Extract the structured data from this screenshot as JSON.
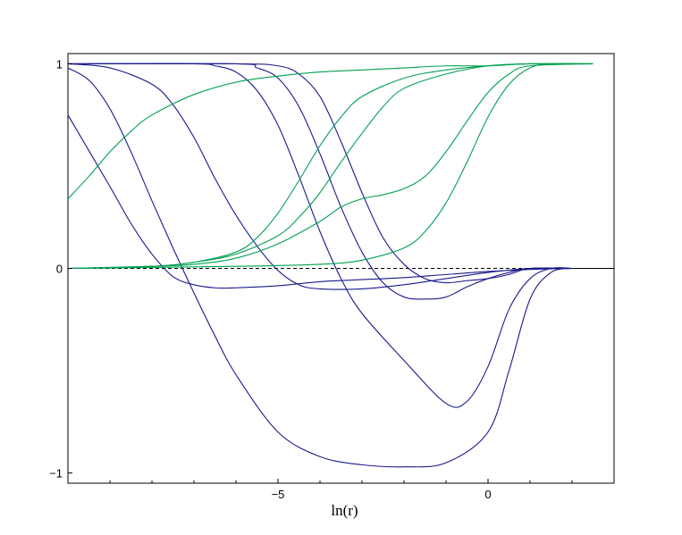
{
  "chart_data": {
    "type": "line",
    "title": "",
    "xlabel": "ln(r)",
    "ylabel": "",
    "xlim": [
      -10,
      3
    ],
    "ylim": [
      -1.05,
      1.05
    ],
    "x_ticks": [
      -5,
      0
    ],
    "x_tick_labels": [
      "−5",
      "0"
    ],
    "y_ticks": [
      -1,
      0,
      1
    ],
    "y_tick_labels": [
      "−1",
      "0",
      "1"
    ],
    "zero_line": {
      "style": "dashed",
      "x_range": [
        -10,
        1
      ]
    },
    "grid": false,
    "legend": "none",
    "colors": {
      "blue": "#1a1a8c",
      "green": "#00a050"
    },
    "series": [
      {
        "color": "blue",
        "points": [
          [
            -10,
            0.75
          ],
          [
            -9,
            0.4
          ],
          [
            -8.5,
            0.22
          ],
          [
            -8,
            0.07
          ],
          [
            -7.5,
            -0.04
          ],
          [
            -7,
            -0.08
          ],
          [
            -6.5,
            -0.095
          ],
          [
            -6,
            -0.095
          ],
          [
            -5,
            -0.085
          ],
          [
            -4,
            -0.065
          ],
          [
            -3,
            -0.055
          ],
          [
            -2,
            -0.045
          ],
          [
            -1,
            -0.03
          ],
          [
            0,
            -0.015
          ],
          [
            1,
            -0.005
          ],
          [
            2,
            0
          ]
        ]
      },
      {
        "color": "blue",
        "points": [
          [
            -10,
            0.98
          ],
          [
            -9.5,
            0.92
          ],
          [
            -9,
            0.78
          ],
          [
            -8.5,
            0.57
          ],
          [
            -8,
            0.33
          ],
          [
            -7.5,
            0.1
          ],
          [
            -7,
            -0.12
          ],
          [
            -6.5,
            -0.33
          ],
          [
            -6,
            -0.52
          ],
          [
            -5,
            -0.8
          ],
          [
            -4,
            -0.92
          ],
          [
            -3,
            -0.96
          ],
          [
            -2,
            -0.97
          ],
          [
            -1,
            -0.95
          ],
          [
            0,
            -0.8
          ],
          [
            0.5,
            -0.5
          ],
          [
            1,
            -0.15
          ],
          [
            1.5,
            -0.02
          ],
          [
            2,
            0
          ]
        ]
      },
      {
        "color": "blue",
        "points": [
          [
            -10,
            1
          ],
          [
            -9,
            0.98
          ],
          [
            -8,
            0.9
          ],
          [
            -7.5,
            0.8
          ],
          [
            -7,
            0.64
          ],
          [
            -6.5,
            0.44
          ],
          [
            -6,
            0.26
          ],
          [
            -5.5,
            0.11
          ],
          [
            -5,
            -0.01
          ],
          [
            -4.5,
            -0.08
          ],
          [
            -4,
            -0.1
          ],
          [
            -3,
            -0.1
          ],
          [
            -2,
            -0.08
          ],
          [
            -1,
            -0.05
          ],
          [
            0,
            -0.02
          ],
          [
            1,
            0
          ],
          [
            2,
            0
          ]
        ]
      },
      {
        "color": "blue",
        "points": [
          [
            -10,
            1
          ],
          [
            -7,
            1
          ],
          [
            -6.5,
            0.99
          ],
          [
            -6,
            0.96
          ],
          [
            -5.5,
            0.87
          ],
          [
            -5,
            0.7
          ],
          [
            -4.5,
            0.45
          ],
          [
            -4,
            0.18
          ],
          [
            -3.5,
            -0.05
          ],
          [
            -3,
            -0.22
          ],
          [
            -2,
            -0.45
          ],
          [
            -1,
            -0.66
          ],
          [
            -0.5,
            -0.65
          ],
          [
            0,
            -0.48
          ],
          [
            0.5,
            -0.2
          ],
          [
            1,
            -0.05
          ],
          [
            1.5,
            0
          ],
          [
            2,
            0
          ]
        ]
      },
      {
        "color": "blue",
        "points": [
          [
            -10,
            1
          ],
          [
            -6,
            1
          ],
          [
            -5.5,
            0.98
          ],
          [
            -5,
            0.93
          ],
          [
            -4.5,
            0.79
          ],
          [
            -4,
            0.56
          ],
          [
            -3.5,
            0.3
          ],
          [
            -3,
            0.08
          ],
          [
            -2.5,
            -0.07
          ],
          [
            -2,
            -0.14
          ],
          [
            -1.5,
            -0.15
          ],
          [
            -1,
            -0.14
          ],
          [
            -0.5,
            -0.09
          ],
          [
            0,
            -0.05
          ],
          [
            0.5,
            -0.02
          ],
          [
            1,
            0
          ],
          [
            2,
            0
          ]
        ]
      },
      {
        "color": "blue",
        "points": [
          [
            -10,
            1
          ],
          [
            -6,
            1
          ],
          [
            -5,
            0.99
          ],
          [
            -4.5,
            0.95
          ],
          [
            -4,
            0.84
          ],
          [
            -3.5,
            0.62
          ],
          [
            -3,
            0.37
          ],
          [
            -2.5,
            0.15
          ],
          [
            -2,
            0.02
          ],
          [
            -1.5,
            -0.05
          ],
          [
            -1,
            -0.07
          ],
          [
            -0.5,
            -0.06
          ],
          [
            0,
            -0.05
          ],
          [
            0.5,
            -0.03
          ],
          [
            1,
            0
          ],
          [
            2,
            0
          ]
        ]
      },
      {
        "color": "green",
        "points": [
          [
            -10,
            0.34
          ],
          [
            -9.5,
            0.45
          ],
          [
            -9,
            0.57
          ],
          [
            -8.5,
            0.67
          ],
          [
            -8,
            0.75
          ],
          [
            -7,
            0.85
          ],
          [
            -6,
            0.91
          ],
          [
            -5,
            0.94
          ],
          [
            -4,
            0.96
          ],
          [
            -3,
            0.97
          ],
          [
            -2,
            0.98
          ],
          [
            -1,
            0.99
          ],
          [
            0,
            0.99
          ],
          [
            1,
            1
          ],
          [
            2.5,
            1
          ]
        ]
      },
      {
        "color": "green",
        "points": [
          [
            -10,
            0
          ],
          [
            -8,
            0.01
          ],
          [
            -7,
            0.03
          ],
          [
            -6,
            0.08
          ],
          [
            -5.5,
            0.15
          ],
          [
            -5,
            0.27
          ],
          [
            -4.5,
            0.43
          ],
          [
            -4,
            0.6
          ],
          [
            -3.5,
            0.74
          ],
          [
            -3,
            0.84
          ],
          [
            -2,
            0.93
          ],
          [
            -1,
            0.97
          ],
          [
            0,
            0.99
          ],
          [
            1,
            1
          ],
          [
            2.5,
            1
          ]
        ]
      },
      {
        "color": "green",
        "points": [
          [
            -10,
            0
          ],
          [
            -8,
            0.01
          ],
          [
            -7,
            0.03
          ],
          [
            -6,
            0.07
          ],
          [
            -5,
            0.16
          ],
          [
            -4.5,
            0.25
          ],
          [
            -4,
            0.37
          ],
          [
            -3.5,
            0.52
          ],
          [
            -3,
            0.66
          ],
          [
            -2.5,
            0.79
          ],
          [
            -2,
            0.88
          ],
          [
            -1,
            0.95
          ],
          [
            0,
            0.99
          ],
          [
            1,
            1
          ],
          [
            2.5,
            1
          ]
        ]
      },
      {
        "color": "green",
        "points": [
          [
            -10,
            0
          ],
          [
            -8,
            0.01
          ],
          [
            -7,
            0.02
          ],
          [
            -6,
            0.05
          ],
          [
            -5,
            0.12
          ],
          [
            -4,
            0.23
          ],
          [
            -3.5,
            0.3
          ],
          [
            -3,
            0.34
          ],
          [
            -2.5,
            0.36
          ],
          [
            -2,
            0.39
          ],
          [
            -1.5,
            0.45
          ],
          [
            -1,
            0.57
          ],
          [
            -0.5,
            0.72
          ],
          [
            0,
            0.86
          ],
          [
            0.5,
            0.95
          ],
          [
            1,
            0.99
          ],
          [
            2.5,
            1
          ]
        ]
      },
      {
        "color": "green",
        "points": [
          [
            -10,
            0
          ],
          [
            -6,
            0.01
          ],
          [
            -4,
            0.02
          ],
          [
            -3,
            0.04
          ],
          [
            -2,
            0.1
          ],
          [
            -1.5,
            0.18
          ],
          [
            -1,
            0.32
          ],
          [
            -0.5,
            0.52
          ],
          [
            0,
            0.74
          ],
          [
            0.5,
            0.9
          ],
          [
            1,
            0.98
          ],
          [
            1.5,
            1
          ],
          [
            2.5,
            1
          ]
        ]
      }
    ]
  }
}
